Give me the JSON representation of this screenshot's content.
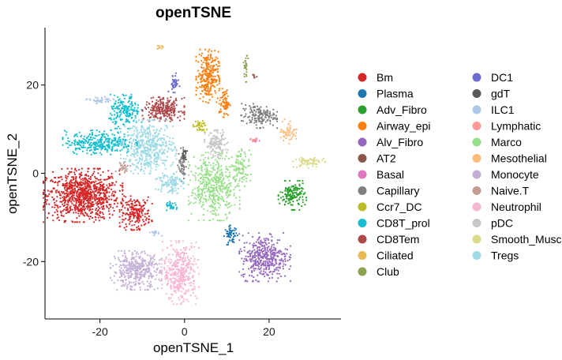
{
  "chart_data": {
    "type": "scatter",
    "title": "openTSNE",
    "xlabel": "openTSNE_1",
    "ylabel": "openTSNE_2",
    "xlim": [
      -33,
      37
    ],
    "ylim": [
      -33,
      33
    ],
    "x_ticks": [
      -20,
      0,
      20
    ],
    "y_ticks": [
      -20,
      0,
      20
    ],
    "grid": false,
    "legend_position": "right",
    "legend_columns": 2,
    "series": [
      {
        "name": "Bm",
        "color": "#D62728",
        "clusters": [
          {
            "x": -24,
            "y": -5,
            "rx": 8.5,
            "ry": 5.5,
            "n": 900
          },
          {
            "x": -11.5,
            "y": -9,
            "rx": 3.5,
            "ry": 3.5,
            "n": 200
          }
        ]
      },
      {
        "name": "Plasma",
        "color": "#1F77B4",
        "clusters": [
          {
            "x": 11,
            "y": -14,
            "rx": 1.5,
            "ry": 2,
            "n": 60
          }
        ]
      },
      {
        "name": "Adv_Fibro",
        "color": "#2CA02C",
        "clusters": [
          {
            "x": 25.5,
            "y": -5,
            "rx": 3,
            "ry": 3,
            "n": 150
          }
        ]
      },
      {
        "name": "Airway_epi",
        "color": "#FF7F0E",
        "clusters": [
          {
            "x": 5.5,
            "y": 22,
            "rx": 2.5,
            "ry": 5.5,
            "n": 280
          },
          {
            "x": 9.5,
            "y": 16,
            "rx": 1.2,
            "ry": 3,
            "n": 70
          }
        ]
      },
      {
        "name": "Alv_Fibro",
        "color": "#9467BD",
        "clusters": [
          {
            "x": 19,
            "y": -19,
            "rx": 5.5,
            "ry": 5,
            "n": 400
          }
        ]
      },
      {
        "name": "AT2",
        "color": "#8C564B",
        "clusters": [
          {
            "x": 16.5,
            "y": 22,
            "rx": 0.6,
            "ry": 0.6,
            "n": 6
          }
        ]
      },
      {
        "name": "Basal",
        "color": "#E377C2",
        "clusters": [
          {
            "x": 16.5,
            "y": 7.5,
            "rx": 1.2,
            "ry": 0.4,
            "n": 10
          }
        ]
      },
      {
        "name": "Capillary",
        "color": "#7F7F7F",
        "clusters": [
          {
            "x": 17.5,
            "y": 13,
            "rx": 4,
            "ry": 2.5,
            "n": 150
          },
          {
            "x": -0.5,
            "y": 2,
            "rx": 1,
            "ry": 3.5,
            "n": 60
          }
        ]
      },
      {
        "name": "Ccr7_DC",
        "color": "#BCBD22",
        "clusters": [
          {
            "x": 3.5,
            "y": 10.5,
            "rx": 1.6,
            "ry": 1.4,
            "n": 40
          }
        ]
      },
      {
        "name": "CD8T_prol",
        "color": "#17BECF",
        "clusters": [
          {
            "x": -20,
            "y": 7,
            "rx": 8,
            "ry": 2.5,
            "n": 320
          },
          {
            "x": -14,
            "y": 14,
            "rx": 3.5,
            "ry": 3.5,
            "n": 180
          },
          {
            "x": -3,
            "y": -7.5,
            "rx": 1.5,
            "ry": 1,
            "n": 30
          }
        ]
      },
      {
        "name": "CD8Tem",
        "color": "#AD494A",
        "clusters": [
          {
            "x": -5,
            "y": 14.5,
            "rx": 4.5,
            "ry": 2.5,
            "n": 250
          }
        ]
      },
      {
        "name": "Ciliated",
        "color": "#E7BA52",
        "clusters": [
          {
            "x": -5.5,
            "y": 28.5,
            "rx": 1,
            "ry": 0.4,
            "n": 10
          }
        ]
      },
      {
        "name": "Club",
        "color": "#8CA252",
        "clusters": [
          {
            "x": 14.5,
            "y": 24,
            "rx": 0.5,
            "ry": 3,
            "n": 25
          }
        ]
      },
      {
        "name": "DC1",
        "color": "#6B6ECF",
        "clusters": [
          {
            "x": -2.5,
            "y": 20.5,
            "rx": 1.2,
            "ry": 2,
            "n": 40
          }
        ]
      },
      {
        "name": "gdT",
        "color": "#595959",
        "clusters": [
          {
            "x": 0,
            "y": 4,
            "rx": 0.7,
            "ry": 1.5,
            "n": 20
          }
        ]
      },
      {
        "name": "ILC1",
        "color": "#AEC7E8",
        "clusters": [
          {
            "x": -20,
            "y": 16.5,
            "rx": 3,
            "ry": 0.8,
            "n": 40
          },
          {
            "x": -7,
            "y": -13.5,
            "rx": 1.5,
            "ry": 0.6,
            "n": 15
          }
        ]
      },
      {
        "name": "Lymphatic",
        "color": "#FF9896",
        "clusters": [
          {
            "x": 16.5,
            "y": 7.5,
            "rx": 1,
            "ry": 0.4,
            "n": 8
          }
        ]
      },
      {
        "name": "Marco",
        "color": "#98DF8A",
        "clusters": [
          {
            "x": 7,
            "y": -3,
            "rx": 5.5,
            "ry": 7,
            "n": 480
          },
          {
            "x": 13.5,
            "y": 1.5,
            "rx": 2,
            "ry": 4,
            "n": 90
          }
        ]
      },
      {
        "name": "Mesothelial",
        "color": "#FFBB78",
        "clusters": [
          {
            "x": 24.5,
            "y": 9.5,
            "rx": 2,
            "ry": 2.5,
            "n": 55
          }
        ]
      },
      {
        "name": "Monocyte",
        "color": "#C5B0D5",
        "clusters": [
          {
            "x": -11.5,
            "y": -22,
            "rx": 5.5,
            "ry": 4,
            "n": 400
          }
        ]
      },
      {
        "name": "Naive.T",
        "color": "#C49C94",
        "clusters": [
          {
            "x": -14.5,
            "y": 1.5,
            "rx": 1.6,
            "ry": 1.2,
            "n": 30
          }
        ]
      },
      {
        "name": "Neutrophil",
        "color": "#F7B6D2",
        "clusters": [
          {
            "x": -1,
            "y": -22.5,
            "rx": 4,
            "ry": 6.5,
            "n": 400
          }
        ]
      },
      {
        "name": "pDC",
        "color": "#C7C7C7",
        "clusters": [
          {
            "x": 7.5,
            "y": 6.5,
            "rx": 2.5,
            "ry": 3,
            "n": 130
          }
        ]
      },
      {
        "name": "Smooth_Muscle",
        "color": "#DBDB8D",
        "clusters": [
          {
            "x": 29.5,
            "y": 2.5,
            "rx": 3.5,
            "ry": 1.2,
            "n": 70
          }
        ]
      },
      {
        "name": "Tregs",
        "color": "#9EDAE5",
        "clusters": [
          {
            "x": -8.5,
            "y": 6,
            "rx": 6,
            "ry": 5.5,
            "n": 480
          },
          {
            "x": -3.5,
            "y": -2,
            "rx": 3,
            "ry": 2.5,
            "n": 110
          }
        ]
      }
    ]
  }
}
